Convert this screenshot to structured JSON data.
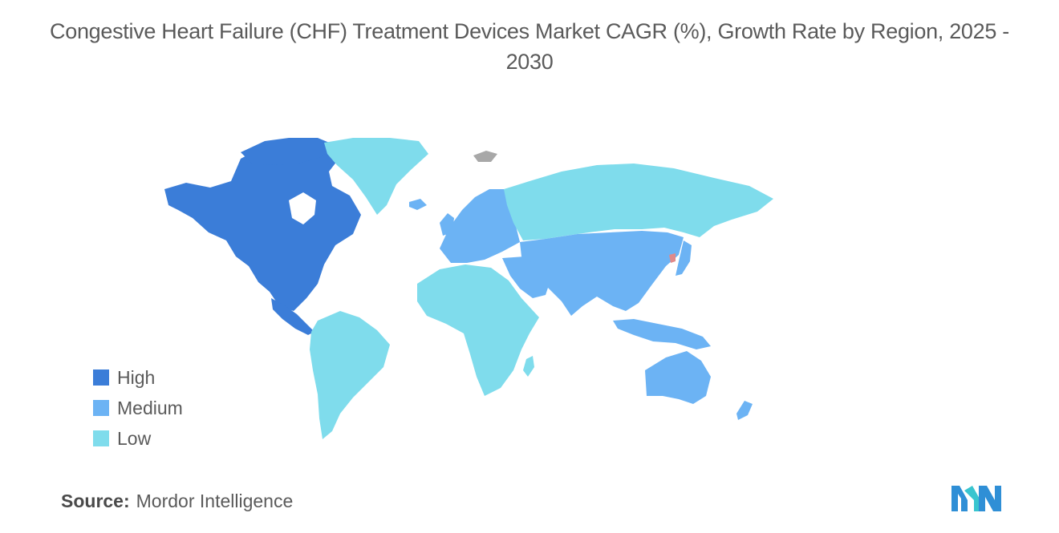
{
  "title": "Congestive Heart Failure (CHF) Treatment Devices Market CAGR (%), Growth Rate by Region, 2025 - 2030",
  "legend": [
    {
      "label": "High",
      "color": "#3b7dd8"
    },
    {
      "label": "Medium",
      "color": "#6cb3f4"
    },
    {
      "label": "Low",
      "color": "#7fdcec"
    }
  ],
  "colors": {
    "high": "#3b7dd8",
    "medium": "#6cb3f4",
    "low": "#7fdcec",
    "no_data": "#a8a8a8",
    "logo": "#2f8fd6",
    "logo_accent": "#39c5cf"
  },
  "regions": {
    "north_america": "high",
    "europe": "medium",
    "asia_pacific": "medium",
    "middle_east": "medium",
    "south_america": "low",
    "africa": "low",
    "russia": "low",
    "greenland": "low"
  },
  "source": {
    "label": "Source:",
    "value": "Mordor Intelligence"
  },
  "logo": {
    "name": "mordor-intelligence-logo"
  }
}
